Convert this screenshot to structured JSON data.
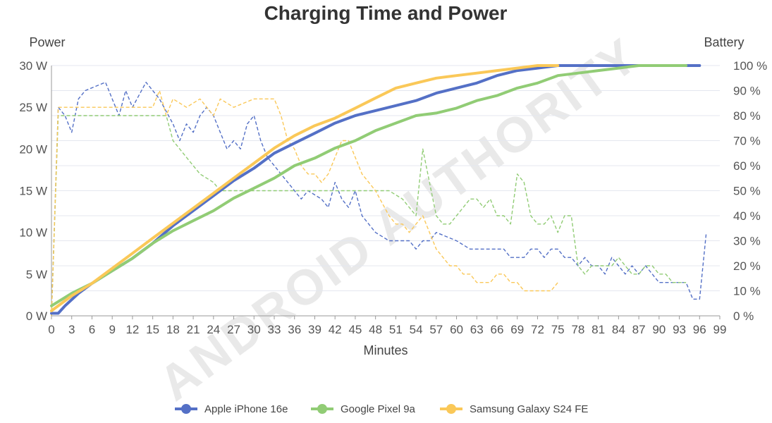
{
  "chart_data": {
    "type": "line",
    "title": "Charging Time and Power",
    "xlabel": "Minutes",
    "ylabel_left": "Power",
    "ylabel_right": "Battery",
    "watermark": "ANDROID AUTHORITY",
    "xlim": [
      0,
      99
    ],
    "ylim_left": [
      0,
      30
    ],
    "ylim_right": [
      0,
      100
    ],
    "x_ticks": [
      "0",
      "3",
      "6",
      "9",
      "12",
      "15",
      "18",
      "21",
      "24",
      "27",
      "30",
      "33",
      "36",
      "39",
      "42",
      "45",
      "48",
      "51",
      "54",
      "57",
      "60",
      "63",
      "66",
      "69",
      "72",
      "75",
      "78",
      "81",
      "84",
      "87",
      "90",
      "93",
      "96",
      "99"
    ],
    "y_left_ticks": [
      "0 W",
      "5 W",
      "10 W",
      "15 W",
      "20 W",
      "25 W",
      "30 W"
    ],
    "y_right_ticks": [
      "0 %",
      "10 %",
      "20 %",
      "30 %",
      "40 %",
      "50 %",
      "60 %",
      "70 %",
      "80 %",
      "90 %",
      "100 %"
    ],
    "grid": true,
    "legend_position": "bottom",
    "colors": {
      "iphone": "#5470c6",
      "pixel": "#91cc75",
      "samsung": "#fac858"
    },
    "battery_series": [
      {
        "name": "Apple iPhone 16e",
        "color": "#5470c6",
        "x": [
          0,
          1,
          2,
          4,
          6,
          9,
          12,
          15,
          18,
          21,
          24,
          27,
          30,
          33,
          36,
          39,
          42,
          45,
          48,
          51,
          54,
          57,
          60,
          63,
          66,
          69,
          72,
          75,
          78,
          81,
          84,
          87,
          90,
          93,
          96
        ],
        "y": [
          1,
          1,
          4,
          9,
          13,
          18,
          23,
          29,
          36,
          42,
          48,
          54,
          59,
          65,
          69,
          73,
          77,
          80,
          82,
          84,
          86,
          89,
          91,
          93,
          96,
          98,
          99,
          100,
          101,
          102,
          103,
          104,
          105,
          106,
          107
        ]
      },
      {
        "name": "Google Pixel 9a",
        "color": "#91cc75",
        "x": [
          0,
          3,
          6,
          9,
          12,
          15,
          18,
          21,
          24,
          27,
          30,
          33,
          36,
          39,
          42,
          45,
          48,
          51,
          54,
          57,
          60,
          63,
          66,
          69,
          72,
          75,
          78,
          81,
          84,
          87,
          90,
          93,
          94
        ],
        "y": [
          4,
          9,
          13,
          18,
          23,
          29,
          34,
          38,
          42,
          47,
          51,
          55,
          60,
          63,
          67,
          70,
          74,
          77,
          80,
          81,
          83,
          86,
          88,
          91,
          93,
          96,
          97,
          98,
          99,
          100,
          101,
          103,
          104
        ]
      },
      {
        "name": "Samsung Galaxy S24 FE",
        "color": "#fac858",
        "x": [
          0,
          3,
          6,
          9,
          12,
          15,
          18,
          21,
          24,
          27,
          30,
          33,
          36,
          39,
          42,
          45,
          48,
          51,
          54,
          57,
          60,
          63,
          66,
          69,
          72,
          75
        ],
        "y": [
          2,
          8,
          13,
          19,
          25,
          31,
          37,
          43,
          49,
          55,
          61,
          67,
          72,
          76,
          79,
          83,
          87,
          91,
          93,
          95,
          96,
          97,
          98,
          99,
          100,
          100
        ]
      }
    ],
    "power_series": [
      {
        "name": "Apple iPhone 16e",
        "color": "#5470c6",
        "x": [
          0,
          1,
          2,
          3,
          4,
          5,
          8,
          10,
          11,
          12,
          14,
          16,
          18,
          19,
          20,
          21,
          22,
          23,
          24,
          25,
          26,
          27,
          28,
          29,
          30,
          31,
          32,
          33,
          35,
          36,
          37,
          38,
          40,
          41,
          42,
          43,
          44,
          45,
          46,
          48,
          50,
          53,
          54,
          55,
          56,
          57,
          60,
          62,
          64,
          65,
          67,
          68,
          69,
          70,
          71,
          72,
          73,
          74,
          75,
          76,
          77,
          78,
          79,
          80,
          81,
          82,
          83,
          84,
          85,
          86,
          87,
          88,
          89,
          90,
          92,
          93,
          94,
          95,
          96,
          97
        ],
        "y": [
          0,
          25,
          24,
          22,
          26,
          27,
          28,
          24,
          27,
          25,
          28,
          26,
          23,
          21,
          23,
          22,
          24,
          25,
          24,
          22,
          20,
          21,
          20,
          23,
          24,
          21,
          19,
          18,
          16,
          15,
          14,
          15,
          14,
          13,
          16,
          14,
          13,
          15,
          12,
          10,
          9,
          9,
          8,
          9,
          9,
          10,
          9,
          8,
          8,
          8,
          8,
          7,
          7,
          7,
          8,
          8,
          7,
          8,
          8,
          7,
          7,
          6,
          7,
          6,
          6,
          5,
          7,
          6,
          5,
          6,
          5,
          6,
          5,
          4,
          4,
          4,
          4,
          2,
          2,
          10
        ]
      },
      {
        "name": "Google Pixel 9a",
        "color": "#91cc75",
        "x": [
          0,
          1,
          3,
          6,
          9,
          12,
          15,
          16,
          17,
          18,
          20,
          22,
          24,
          25,
          27,
          30,
          33,
          36,
          39,
          42,
          45,
          48,
          50,
          52,
          53,
          54,
          55,
          56,
          57,
          58,
          59,
          60,
          61,
          62,
          63,
          64,
          65,
          66,
          67,
          68,
          69,
          70,
          71,
          72,
          73,
          74,
          75,
          76,
          77,
          78,
          79,
          80,
          81,
          82,
          83,
          84,
          85,
          86,
          87,
          88,
          89,
          90,
          91,
          92,
          93,
          94
        ],
        "y": [
          0,
          24,
          24,
          24,
          24,
          24,
          24,
          24,
          24,
          21,
          19,
          17,
          16,
          15,
          15,
          15,
          15,
          15,
          15,
          15,
          15,
          15,
          15,
          14,
          13,
          12,
          20,
          16,
          12,
          11,
          11,
          12,
          13,
          14,
          14,
          13,
          14,
          12,
          12,
          11,
          17,
          16,
          12,
          11,
          11,
          12,
          10,
          12,
          12,
          6,
          5,
          6,
          6,
          6,
          6,
          7,
          6,
          5,
          5,
          6,
          6,
          5,
          5,
          4,
          4,
          4
        ]
      },
      {
        "name": "Samsung Galaxy S24 FE",
        "color": "#fac858",
        "x": [
          0,
          1,
          3,
          6,
          9,
          12,
          15,
          16,
          17,
          18,
          20,
          22,
          24,
          25,
          27,
          30,
          33,
          34,
          35,
          36,
          37,
          38,
          39,
          40,
          41,
          42,
          43,
          44,
          45,
          46,
          48,
          50,
          51,
          52,
          53,
          54,
          55,
          56,
          57,
          58,
          59,
          60,
          61,
          62,
          63,
          64,
          65,
          66,
          67,
          68,
          69,
          70,
          71,
          72,
          73,
          74,
          75
        ],
        "y": [
          0,
          25,
          25,
          25,
          25,
          25,
          25,
          27,
          24,
          26,
          25,
          26,
          24,
          26,
          25,
          26,
          26,
          24,
          21,
          20,
          18,
          17,
          17,
          16,
          17,
          19,
          21,
          21,
          19,
          17,
          15,
          12,
          11,
          11,
          10,
          11,
          12,
          10,
          8,
          7,
          6,
          6,
          5,
          5,
          4,
          4,
          4,
          5,
          5,
          4,
          4,
          3,
          3,
          3,
          3,
          3,
          4
        ]
      }
    ],
    "legend": [
      {
        "name": "Apple iPhone 16e",
        "color": "#5470c6"
      },
      {
        "name": "Google Pixel 9a",
        "color": "#91cc75"
      },
      {
        "name": "Samsung Galaxy S24 FE",
        "color": "#fac858"
      }
    ]
  }
}
